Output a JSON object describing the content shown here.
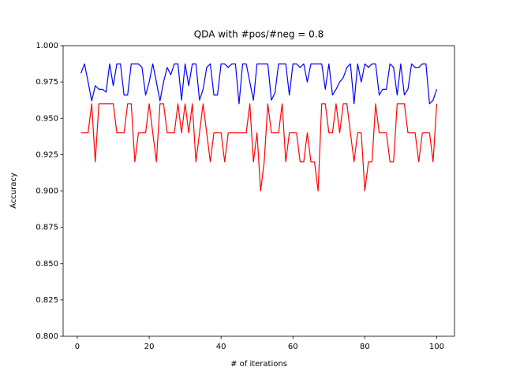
{
  "chart_data": {
    "type": "line",
    "title": "QDA with #pos/#neg = 0.8",
    "xlabel": "# of iterations",
    "ylabel": "Accuracy",
    "x": [
      1,
      2,
      3,
      4,
      5,
      6,
      7,
      8,
      9,
      10,
      11,
      12,
      13,
      14,
      15,
      16,
      17,
      18,
      19,
      20,
      21,
      22,
      23,
      24,
      25,
      26,
      27,
      28,
      29,
      30,
      31,
      32,
      33,
      34,
      35,
      36,
      37,
      38,
      39,
      40,
      41,
      42,
      43,
      44,
      45,
      46,
      47,
      48,
      49,
      50,
      51,
      52,
      53,
      54,
      55,
      56,
      57,
      58,
      59,
      60,
      61,
      62,
      63,
      64,
      65,
      66,
      67,
      68,
      69,
      70,
      71,
      72,
      73,
      74,
      75,
      76,
      77,
      78,
      79,
      80,
      81,
      82,
      83,
      84,
      85,
      86,
      87,
      88,
      89,
      90,
      91,
      92,
      93,
      94,
      95,
      96,
      97,
      98,
      99,
      100
    ],
    "series": [
      {
        "color": "#0000ff",
        "values": [
          0.981,
          0.9875,
          0.975,
          0.962,
          0.9725,
          0.97,
          0.97,
          0.968,
          0.9875,
          0.9725,
          0.9875,
          0.9875,
          0.966,
          0.966,
          0.9875,
          0.9875,
          0.9875,
          0.985,
          0.966,
          0.975,
          0.9875,
          0.975,
          0.962,
          0.975,
          0.985,
          0.98,
          0.9875,
          0.9875,
          0.9625,
          0.9875,
          0.9725,
          0.9875,
          0.9875,
          0.9625,
          0.97,
          0.985,
          0.9875,
          0.966,
          0.966,
          0.9875,
          0.9875,
          0.985,
          0.9875,
          0.9875,
          0.96,
          0.9875,
          0.9875,
          0.975,
          0.9625,
          0.9875,
          0.9875,
          0.9875,
          0.9875,
          0.9625,
          0.9675,
          0.9875,
          0.9875,
          0.9875,
          0.966,
          0.9875,
          0.9875,
          0.985,
          0.9875,
          0.975,
          0.9875,
          0.9875,
          0.9875,
          0.9875,
          0.97,
          0.9875,
          0.966,
          0.97,
          0.975,
          0.978,
          0.985,
          0.9875,
          0.96,
          0.9875,
          0.975,
          0.9875,
          0.985,
          0.9875,
          0.9875,
          0.966,
          0.97,
          0.97,
          0.9875,
          0.985,
          0.966,
          0.9875,
          0.966,
          0.97,
          0.9875,
          0.985,
          0.985,
          0.9875,
          0.9875,
          0.96,
          0.9625,
          0.97
        ]
      },
      {
        "color": "#ff0000",
        "values": [
          0.94,
          0.94,
          0.94,
          0.96,
          0.92,
          0.96,
          0.96,
          0.96,
          0.96,
          0.96,
          0.94,
          0.94,
          0.94,
          0.96,
          0.96,
          0.92,
          0.94,
          0.94,
          0.94,
          0.96,
          0.94,
          0.92,
          0.96,
          0.96,
          0.94,
          0.94,
          0.94,
          0.96,
          0.94,
          0.96,
          0.94,
          0.96,
          0.92,
          0.94,
          0.96,
          0.94,
          0.92,
          0.94,
          0.94,
          0.94,
          0.92,
          0.94,
          0.94,
          0.94,
          0.94,
          0.94,
          0.94,
          0.96,
          0.92,
          0.94,
          0.9,
          0.92,
          0.96,
          0.94,
          0.94,
          0.94,
          0.96,
          0.92,
          0.94,
          0.94,
          0.94,
          0.92,
          0.92,
          0.94,
          0.92,
          0.92,
          0.9,
          0.96,
          0.96,
          0.94,
          0.94,
          0.96,
          0.94,
          0.96,
          0.96,
          0.94,
          0.92,
          0.94,
          0.94,
          0.9,
          0.92,
          0.92,
          0.96,
          0.94,
          0.94,
          0.94,
          0.92,
          0.92,
          0.96,
          0.96,
          0.96,
          0.94,
          0.94,
          0.94,
          0.92,
          0.94,
          0.94,
          0.94,
          0.92,
          0.96
        ]
      }
    ],
    "xlim": [
      -3.95,
      104.95
    ],
    "xticks": [
      0,
      20,
      40,
      60,
      80,
      100
    ],
    "ylim": [
      0.8,
      1.0
    ],
    "yticks": [
      {
        "value": 0.8,
        "label": "0.800"
      },
      {
        "value": 0.825,
        "label": "0.825"
      },
      {
        "value": 0.85,
        "label": "0.850"
      },
      {
        "value": 0.875,
        "label": "0.875"
      },
      {
        "value": 0.9,
        "label": "0.900"
      },
      {
        "value": 0.925,
        "label": "0.925"
      },
      {
        "value": 0.95,
        "label": "0.950"
      },
      {
        "value": 0.975,
        "label": "0.975"
      },
      {
        "value": 1.0,
        "label": "1.000"
      }
    ],
    "grid": false
  }
}
